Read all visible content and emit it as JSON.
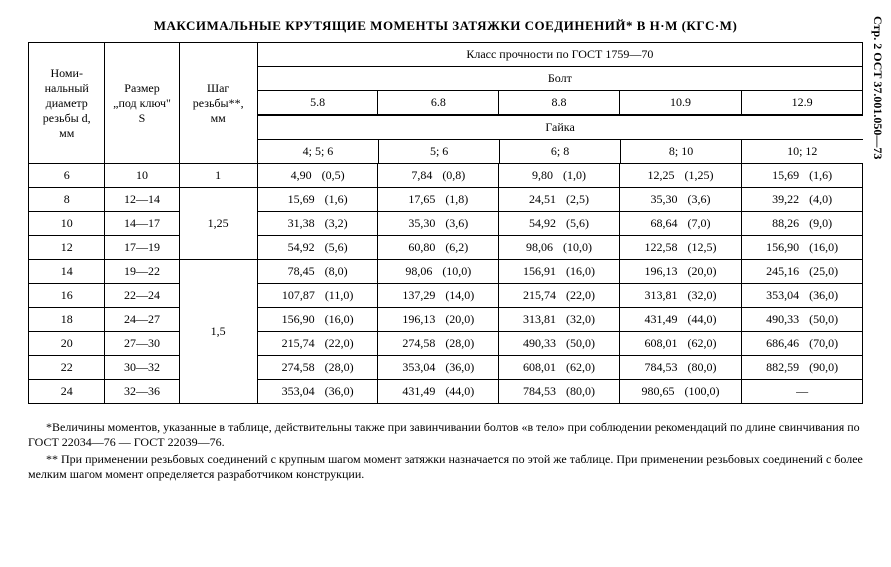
{
  "title": "МАКСИМАЛЬНЫЕ КРУТЯЩИЕ МОМЕНТЫ ЗАТЯЖКИ СОЕДИНЕНИЙ* В Н·М (КГС·М)",
  "side_label": "Стр. 2  ОСТ 37.001.050—73",
  "headers": {
    "c1": "Номи­нальный диаметр резьбы d, мм",
    "c2": "Размер „под ключ\" S",
    "c3": "Шаг резьбы**, мм",
    "top": "Класс прочности по ГОСТ 1759—70",
    "bolt": "Болт",
    "nut": "Гайка",
    "b1": "5.8",
    "b2": "6.8",
    "b3": "8.8",
    "b4": "10.9",
    "b5": "12.9",
    "n1": "4; 5; 6",
    "n2": "5; 6",
    "n3": "6; 8",
    "n4": "8; 10",
    "n5": "10; 12"
  },
  "rows": [
    {
      "d": "6",
      "s": "10",
      "p": "1",
      "c": [
        [
          "4,90",
          "(0,5)"
        ],
        [
          "7,84",
          "(0,8)"
        ],
        [
          "9,80",
          "(1,0)"
        ],
        [
          "12,25",
          "(1,25)"
        ],
        [
          "15,69",
          "(1,6)"
        ]
      ]
    },
    {
      "d": "8",
      "s": "12—14",
      "p": "1,25",
      "c": [
        [
          "15,69",
          "(1,6)"
        ],
        [
          "17,65",
          "(1,8)"
        ],
        [
          "24,51",
          "(2,5)"
        ],
        [
          "35,30",
          "(3,6)"
        ],
        [
          "39,22",
          "(4,0)"
        ]
      ]
    },
    {
      "d": "10",
      "s": "14—17",
      "p": "1,25",
      "c": [
        [
          "31,38",
          "(3,2)"
        ],
        [
          "35,30",
          "(3,6)"
        ],
        [
          "54,92",
          "(5,6)"
        ],
        [
          "68,64",
          "(7,0)"
        ],
        [
          "88,26",
          "(9,0)"
        ]
      ]
    },
    {
      "d": "12",
      "s": "17—19",
      "p": "1,25",
      "c": [
        [
          "54,92",
          "(5,6)"
        ],
        [
          "60,80",
          "(6,2)"
        ],
        [
          "98,06",
          "(10,0)"
        ],
        [
          "122,58",
          "(12,5)"
        ],
        [
          "156,90",
          "(16,0)"
        ]
      ]
    },
    {
      "d": "14",
      "s": "19—22",
      "p": "1,5",
      "c": [
        [
          "78,45",
          "(8,0)"
        ],
        [
          "98,06",
          "(10,0)"
        ],
        [
          "156,91",
          "(16,0)"
        ],
        [
          "196,13",
          "(20,0)"
        ],
        [
          "245,16",
          "(25,0)"
        ]
      ]
    },
    {
      "d": "16",
      "s": "22—24",
      "p": "1,5",
      "c": [
        [
          "107,87",
          "(11,0)"
        ],
        [
          "137,29",
          "(14,0)"
        ],
        [
          "215,74",
          "(22,0)"
        ],
        [
          "313,81",
          "(32,0)"
        ],
        [
          "353,04",
          "(36,0)"
        ]
      ]
    },
    {
      "d": "18",
      "s": "24—27",
      "p": "1,5",
      "c": [
        [
          "156,90",
          "(16,0)"
        ],
        [
          "196,13",
          "(20,0)"
        ],
        [
          "313,81",
          "(32,0)"
        ],
        [
          "431,49",
          "(44,0)"
        ],
        [
          "490,33",
          "(50,0)"
        ]
      ]
    },
    {
      "d": "20",
      "s": "27—30",
      "p": "1,5",
      "c": [
        [
          "215,74",
          "(22,0)"
        ],
        [
          "274,58",
          "(28,0)"
        ],
        [
          "490,33",
          "(50,0)"
        ],
        [
          "608,01",
          "(62,0)"
        ],
        [
          "686,46",
          "(70,0)"
        ]
      ]
    },
    {
      "d": "22",
      "s": "30—32",
      "p": "1,5",
      "c": [
        [
          "274,58",
          "(28,0)"
        ],
        [
          "353,04",
          "(36,0)"
        ],
        [
          "608,01",
          "(62,0)"
        ],
        [
          "784,53",
          "(80,0)"
        ],
        [
          "882,59",
          "(90,0)"
        ]
      ]
    },
    {
      "d": "24",
      "s": "32—36",
      "p": "1,5",
      "c": [
        [
          "353,04",
          "(36,0)"
        ],
        [
          "431,49",
          "(44,0)"
        ],
        [
          "784,53",
          "(80,0)"
        ],
        [
          "980,65",
          "(100,0)"
        ],
        [
          "—",
          ""
        ]
      ]
    }
  ],
  "pitch_spans": [
    {
      "start": 0,
      "len": 1,
      "label": "1"
    },
    {
      "start": 1,
      "len": 3,
      "label": "1,25"
    },
    {
      "start": 4,
      "len": 6,
      "label": "1,5"
    }
  ],
  "footnotes": {
    "f1": "*Величины моментов, указанные в таблице, действительны также при завинчивании болтов «в тело» при соблюдении рекомендаций по длине свинчивания по ГОСТ 22034—76 — ГОСТ 22039—76.",
    "f2": "** При применении резьбовых соединений с крупным шагом момент затяжки назначается по этой же таблице. При применении резьбовых соединений с более мелким шагом момент определяется разработчиком конструкции."
  }
}
